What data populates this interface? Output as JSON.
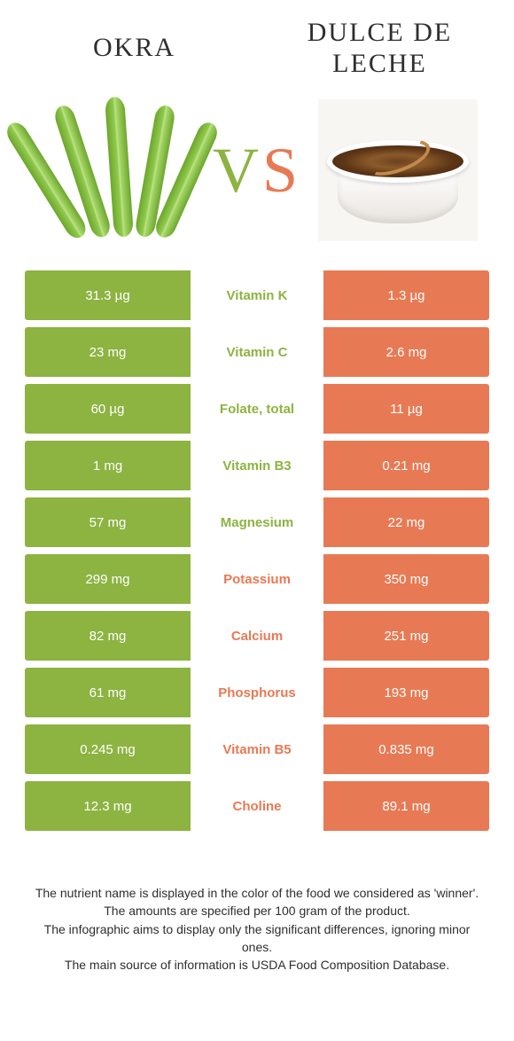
{
  "colors": {
    "okra": "#8db341",
    "dulce": "#e77a54",
    "white": "#ffffff"
  },
  "header": {
    "left": "Okra",
    "right": "Dulce de Leche"
  },
  "vs": {
    "v": "V",
    "s": "S"
  },
  "rows": [
    {
      "left": "31.3 µg",
      "nutrient": "Vitamin K",
      "right": "1.3 µg",
      "winner": "left"
    },
    {
      "left": "23 mg",
      "nutrient": "Vitamin C",
      "right": "2.6 mg",
      "winner": "left"
    },
    {
      "left": "60 µg",
      "nutrient": "Folate, total",
      "right": "11 µg",
      "winner": "left"
    },
    {
      "left": "1 mg",
      "nutrient": "Vitamin B3",
      "right": "0.21 mg",
      "winner": "left"
    },
    {
      "left": "57 mg",
      "nutrient": "Magnesium",
      "right": "22 mg",
      "winner": "left"
    },
    {
      "left": "299 mg",
      "nutrient": "Potassium",
      "right": "350 mg",
      "winner": "right"
    },
    {
      "left": "82 mg",
      "nutrient": "Calcium",
      "right": "251 mg",
      "winner": "right"
    },
    {
      "left": "61 mg",
      "nutrient": "Phosphorus",
      "right": "193 mg",
      "winner": "right"
    },
    {
      "left": "0.245 mg",
      "nutrient": "Vitamin B5",
      "right": "0.835 mg",
      "winner": "right"
    },
    {
      "left": "12.3 mg",
      "nutrient": "Choline",
      "right": "89.1 mg",
      "winner": "right"
    }
  ],
  "footnote": {
    "l1": "The nutrient name is displayed in the color of the food we considered as 'winner'.",
    "l2": "The amounts are specified per 100 gram of the product.",
    "l3": "The infographic aims to display only the significant differences, ignoring minor ones.",
    "l4": "The main source of information is USDA Food Composition Database."
  }
}
